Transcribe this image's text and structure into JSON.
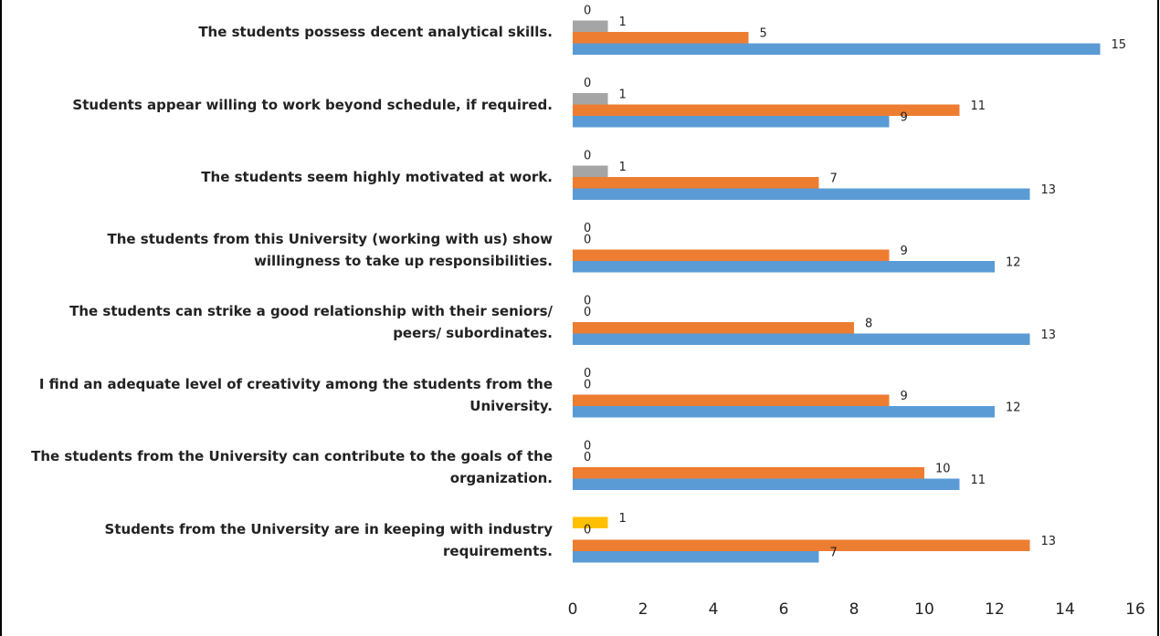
{
  "chart_data": {
    "type": "bar",
    "orientation": "horizontal",
    "categories": [
      "The students possess decent analytical skills.",
      "Students appear willing to work beyond schedule, if required.",
      "The students seem highly motivated at work.",
      "The students from this University (working with us) show willingness to take up responsibilities.",
      "The students can strike a good relationship with their seniors/ peers/ subordinates.",
      "I find an adequate level of creativity among the students from the University.",
      "The students from the University can contribute to the goals of the organization.",
      "Students from the University are in keeping with industry requirements."
    ],
    "series": [
      {
        "color": "#ffc000",
        "values": [
          0,
          0,
          0,
          0,
          0,
          0,
          0,
          1
        ]
      },
      {
        "color": "#a5a5a5",
        "values": [
          1,
          1,
          1,
          0,
          0,
          0,
          0,
          0
        ]
      },
      {
        "color": "#ed7d31",
        "values": [
          5,
          11,
          7,
          9,
          8,
          9,
          10,
          13
        ]
      },
      {
        "color": "#5b9bd5",
        "values": [
          15,
          9,
          13,
          12,
          13,
          12,
          11,
          7
        ]
      }
    ],
    "xlim": [
      0,
      16
    ],
    "xticks": [
      0,
      2,
      4,
      6,
      8,
      10,
      12,
      14,
      16
    ]
  }
}
